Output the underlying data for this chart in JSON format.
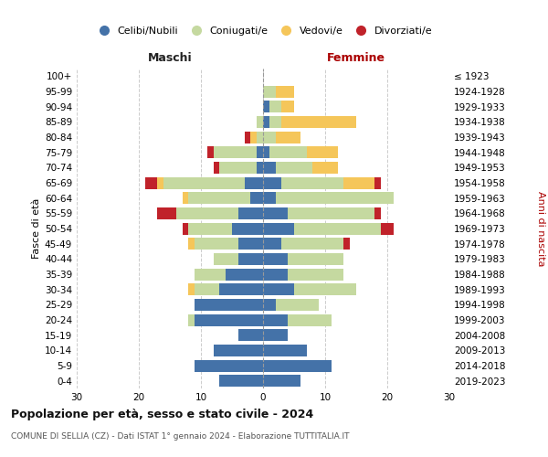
{
  "age_groups": [
    "0-4",
    "5-9",
    "10-14",
    "15-19",
    "20-24",
    "25-29",
    "30-34",
    "35-39",
    "40-44",
    "45-49",
    "50-54",
    "55-59",
    "60-64",
    "65-69",
    "70-74",
    "75-79",
    "80-84",
    "85-89",
    "90-94",
    "95-99",
    "100+"
  ],
  "birth_years": [
    "2019-2023",
    "2014-2018",
    "2009-2013",
    "2004-2008",
    "1999-2003",
    "1994-1998",
    "1989-1993",
    "1984-1988",
    "1979-1983",
    "1974-1978",
    "1969-1973",
    "1964-1968",
    "1959-1963",
    "1954-1958",
    "1949-1953",
    "1944-1948",
    "1939-1943",
    "1934-1938",
    "1929-1933",
    "1924-1928",
    "≤ 1923"
  ],
  "male": {
    "celibi": [
      7,
      11,
      8,
      4,
      11,
      11,
      7,
      6,
      4,
      4,
      5,
      4,
      2,
      3,
      1,
      1,
      0,
      0,
      0,
      0,
      0
    ],
    "coniugati": [
      0,
      0,
      0,
      0,
      1,
      0,
      4,
      5,
      4,
      7,
      7,
      10,
      10,
      13,
      6,
      7,
      1,
      1,
      0,
      0,
      0
    ],
    "vedovi": [
      0,
      0,
      0,
      0,
      0,
      0,
      1,
      0,
      0,
      1,
      0,
      0,
      1,
      1,
      0,
      0,
      1,
      0,
      0,
      0,
      0
    ],
    "divorziati": [
      0,
      0,
      0,
      0,
      0,
      0,
      0,
      0,
      0,
      0,
      1,
      3,
      0,
      2,
      1,
      1,
      1,
      0,
      0,
      0,
      0
    ]
  },
  "female": {
    "nubili": [
      6,
      11,
      7,
      4,
      4,
      2,
      5,
      4,
      4,
      3,
      5,
      4,
      2,
      3,
      2,
      1,
      0,
      1,
      1,
      0,
      0
    ],
    "coniugate": [
      0,
      0,
      0,
      0,
      7,
      7,
      10,
      9,
      9,
      10,
      14,
      14,
      19,
      10,
      6,
      6,
      2,
      2,
      2,
      2,
      0
    ],
    "vedove": [
      0,
      0,
      0,
      0,
      0,
      0,
      0,
      0,
      0,
      0,
      0,
      0,
      0,
      5,
      4,
      5,
      4,
      12,
      2,
      3,
      0
    ],
    "divorziate": [
      0,
      0,
      0,
      0,
      0,
      0,
      0,
      0,
      0,
      1,
      2,
      1,
      0,
      1,
      0,
      0,
      0,
      0,
      0,
      0,
      0
    ]
  },
  "colors": {
    "celibi": "#4472a8",
    "coniugati": "#c5d9a0",
    "vedovi": "#f5c65a",
    "divorziati": "#c0222a"
  },
  "xlim": [
    -30,
    30
  ],
  "xticks": [
    -30,
    -20,
    -10,
    0,
    10,
    20,
    30
  ],
  "xticklabels": [
    "30",
    "20",
    "10",
    "0",
    "10",
    "20",
    "30"
  ],
  "title": "Popolazione per età, sesso e stato civile - 2024",
  "subtitle": "COMUNE DI SELLIA (CZ) - Dati ISTAT 1° gennaio 2024 - Elaborazione TUTTITALIA.IT",
  "ylabel_left": "Fasce di età",
  "ylabel_right": "Anni di nascita",
  "header_left": "Maschi",
  "header_right": "Femmine",
  "bg_color": "#ffffff",
  "grid_color": "#cccccc"
}
